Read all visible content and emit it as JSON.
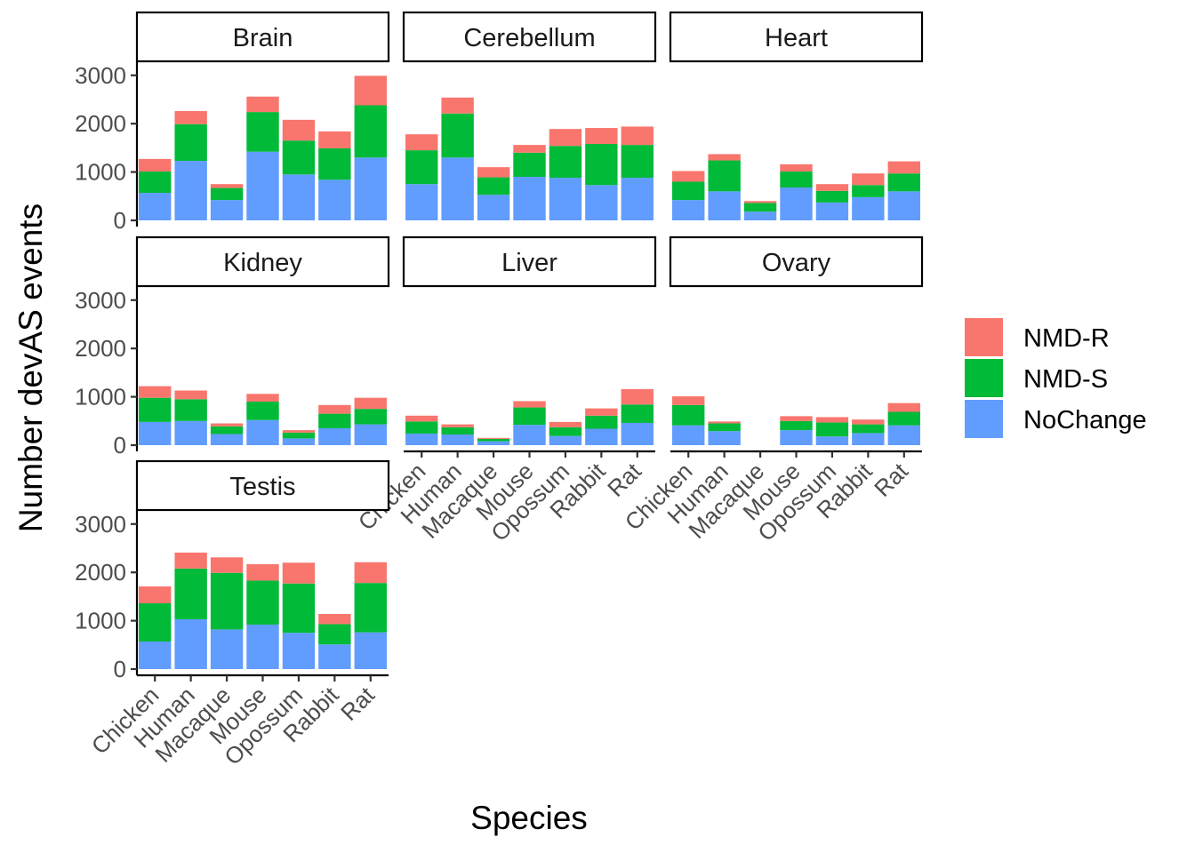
{
  "chart_data": {
    "type": "bar",
    "stacked": true,
    "xlabel": "Species",
    "ylabel": "Number devAS events",
    "ylim": [
      0,
      3000
    ],
    "y_ticks": [
      0,
      1000,
      2000,
      3000
    ],
    "grid": false,
    "legend_position": "right",
    "categories": [
      "Chicken",
      "Human",
      "Macaque",
      "Mouse",
      "Opossum",
      "Rabbit",
      "Rat"
    ],
    "series_order_bottom_to_top": [
      "NoChange",
      "NMD-S",
      "NMD-R"
    ],
    "legend": [
      {
        "name": "NMD-R",
        "color": "#F8766D"
      },
      {
        "name": "NMD-S",
        "color": "#00BA38"
      },
      {
        "name": "NoChange",
        "color": "#619CFF"
      }
    ],
    "panels": [
      {
        "tissue": "Brain",
        "series": {
          "NoChange": [
            570,
            1230,
            420,
            1420,
            950,
            840,
            1300
          ],
          "NMD-S": [
            440,
            760,
            250,
            820,
            700,
            650,
            1080
          ],
          "NMD-R": [
            260,
            270,
            80,
            320,
            430,
            350,
            610
          ]
        }
      },
      {
        "tissue": "Cerebellum",
        "series": {
          "NoChange": [
            750,
            1300,
            530,
            900,
            880,
            730,
            880
          ],
          "NMD-S": [
            700,
            910,
            360,
            500,
            660,
            850,
            680
          ],
          "NMD-R": [
            330,
            330,
            210,
            160,
            350,
            330,
            380
          ]
        }
      },
      {
        "tissue": "Heart",
        "series": {
          "NoChange": [
            420,
            600,
            180,
            680,
            370,
            480,
            600
          ],
          "NMD-S": [
            380,
            640,
            180,
            330,
            240,
            250,
            370
          ],
          "NMD-R": [
            220,
            130,
            40,
            150,
            140,
            240,
            250
          ]
        }
      },
      {
        "tissue": "Kidney",
        "series": {
          "NoChange": [
            480,
            500,
            230,
            520,
            140,
            350,
            430
          ],
          "NMD-S": [
            500,
            450,
            160,
            380,
            120,
            300,
            320
          ],
          "NMD-R": [
            240,
            180,
            60,
            160,
            50,
            180,
            230
          ]
        }
      },
      {
        "tissue": "Liver",
        "series": {
          "NoChange": [
            240,
            220,
            80,
            420,
            190,
            340,
            460
          ],
          "NMD-S": [
            250,
            150,
            50,
            360,
            180,
            270,
            380
          ],
          "NMD-R": [
            120,
            60,
            20,
            130,
            110,
            150,
            320
          ]
        }
      },
      {
        "tissue": "Ovary",
        "series": {
          "NoChange": [
            410,
            290,
            0,
            310,
            180,
            250,
            410
          ],
          "NMD-S": [
            420,
            160,
            0,
            190,
            290,
            180,
            280
          ],
          "NMD-R": [
            180,
            40,
            0,
            100,
            110,
            100,
            180
          ]
        }
      },
      {
        "tissue": "Testis",
        "series": {
          "NoChange": [
            570,
            1030,
            820,
            920,
            750,
            510,
            760
          ],
          "NMD-S": [
            790,
            1050,
            1170,
            910,
            1020,
            420,
            1020
          ],
          "NMD-R": [
            350,
            330,
            320,
            340,
            430,
            210,
            430
          ]
        }
      }
    ]
  }
}
